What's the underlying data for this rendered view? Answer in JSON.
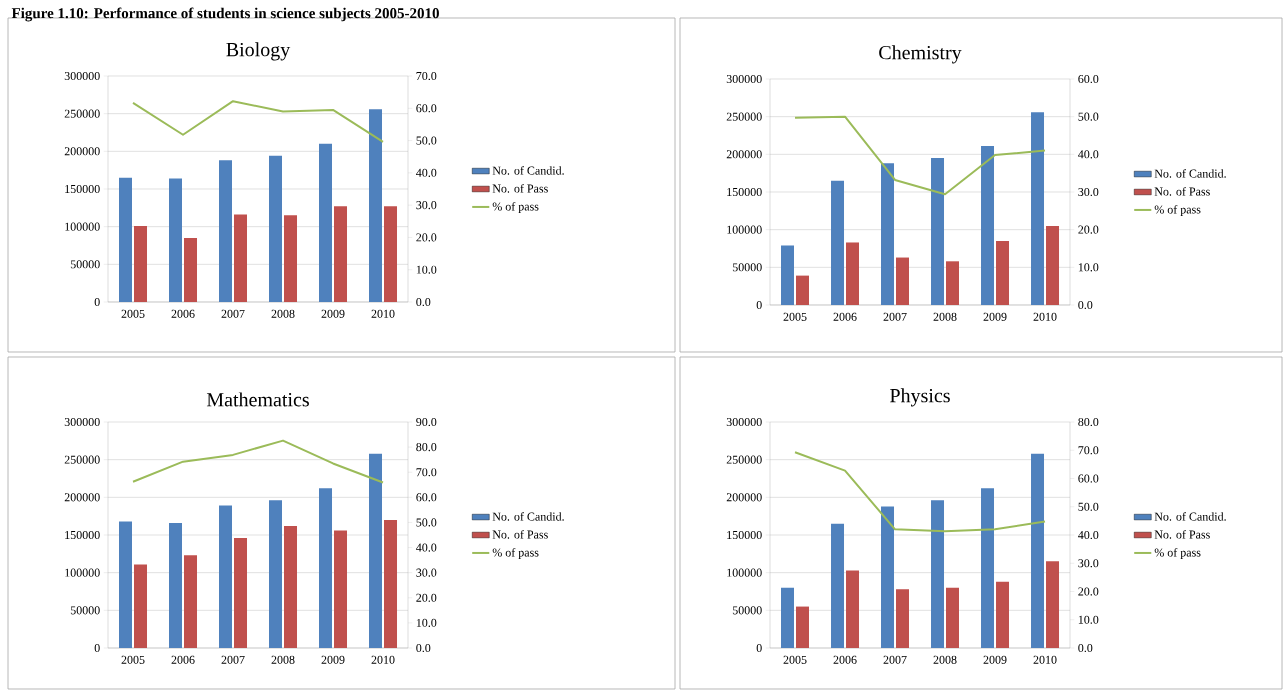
{
  "chart_data": [
    {
      "type": "bar",
      "title": "Biology",
      "annotations": [
        "Figure 1.10: Performance of students in science subjects 2005-2010"
      ],
      "categories": [
        "2005",
        "2006",
        "2007",
        "2008",
        "2009",
        "2010"
      ],
      "series": [
        {
          "name": "No. of Candid.",
          "color": "#4f81bd",
          "values": [
            165000,
            164000,
            188000,
            194000,
            210000,
            256000
          ]
        },
        {
          "name": "No. of Pass",
          "color": "#c0504d",
          "values": [
            101000,
            85000,
            116000,
            115000,
            127000,
            127000
          ]
        },
        {
          "name": "% of pass",
          "type": "line",
          "axis": "y2",
          "color": "#9bbb59",
          "values": [
            61.7,
            51.8,
            62.2,
            59.0,
            59.5,
            49.6
          ]
        }
      ],
      "ylim": [
        0,
        300000
      ],
      "yticks": [
        0,
        50000,
        100000,
        150000,
        200000,
        250000,
        300000
      ],
      "y2lim": [
        0,
        70
      ],
      "y2ticks": [
        {
          "value": 0,
          "label": "0.0"
        },
        {
          "value": 10,
          "label": "10.0"
        },
        {
          "value": 20,
          "label": "20.0"
        },
        {
          "value": 30,
          "label": "30.0"
        },
        {
          "value": 40,
          "label": "40.0"
        },
        {
          "value": 50,
          "label": "50.0"
        },
        {
          "value": 60,
          "label": "60.0"
        },
        {
          "value": 70,
          "label": "70.0"
        }
      ],
      "grid": "y",
      "legend": "right"
    },
    {
      "type": "bar",
      "title": "Chemistry",
      "categories": [
        "2005",
        "2006",
        "2007",
        "2008",
        "2009",
        "2010"
      ],
      "series": [
        {
          "name": "No. of Candid.",
          "color": "#4f81bd",
          "values": [
            79000,
            165000,
            188000,
            195000,
            211000,
            256000
          ]
        },
        {
          "name": "No. of Pass",
          "color": "#c0504d",
          "values": [
            39000,
            83000,
            63000,
            58000,
            85000,
            105000
          ]
        },
        {
          "name": "% of pass",
          "type": "line",
          "axis": "y2",
          "color": "#9bbb59",
          "values": [
            49.7,
            50.0,
            33.2,
            29.4,
            39.8,
            41.0
          ]
        }
      ],
      "ylim": [
        0,
        300000
      ],
      "yticks": [
        0,
        50000,
        100000,
        150000,
        200000,
        250000,
        300000
      ],
      "y2lim": [
        0,
        60
      ],
      "y2ticks": [
        {
          "value": 0,
          "label": "0.0"
        },
        {
          "value": 10,
          "label": "10.0"
        },
        {
          "value": 20,
          "label": "20.0"
        },
        {
          "value": 30,
          "label": "30.0"
        },
        {
          "value": 40,
          "label": "40.0"
        },
        {
          "value": 50,
          "label": "50.0"
        },
        {
          "value": 60,
          "label": "60.0"
        }
      ],
      "grid": "y",
      "legend": "right"
    },
    {
      "type": "bar",
      "title": "Mathematics",
      "categories": [
        "2005",
        "2006",
        "2007",
        "2008",
        "2009",
        "2010"
      ],
      "series": [
        {
          "name": "No. of Candid.",
          "color": "#4f81bd",
          "values": [
            168000,
            166000,
            189000,
            196000,
            212000,
            258000
          ]
        },
        {
          "name": "No. of Pass",
          "color": "#c0504d",
          "values": [
            111000,
            123000,
            146000,
            162000,
            156000,
            170000
          ]
        },
        {
          "name": "% of pass",
          "type": "line",
          "axis": "y2",
          "color": "#9bbb59",
          "values": [
            66.2,
            74.2,
            76.9,
            82.6,
            73.5,
            65.9
          ]
        }
      ],
      "ylim": [
        0,
        300000
      ],
      "yticks": [
        0,
        50000,
        100000,
        150000,
        200000,
        250000,
        300000
      ],
      "y2lim": [
        0,
        90
      ],
      "y2ticks": [
        {
          "value": 0,
          "label": "0.0"
        },
        {
          "value": 10,
          "label": "10.0"
        },
        {
          "value": 20,
          "label": "20.0"
        },
        {
          "value": 30,
          "label": "30.0"
        },
        {
          "value": 40,
          "label": "40.0"
        },
        {
          "value": 50,
          "label": "50.0"
        },
        {
          "value": 60,
          "label": "60.0"
        },
        {
          "value": 70,
          "label": "70.0"
        },
        {
          "value": 80,
          "label": "80.0"
        },
        {
          "value": 90,
          "label": "90.0"
        }
      ],
      "grid": "y",
      "legend": "right"
    },
    {
      "type": "bar",
      "title": "Physics",
      "categories": [
        "2005",
        "2006",
        "2007",
        "2008",
        "2009",
        "2010"
      ],
      "series": [
        {
          "name": "No. of Candid.",
          "color": "#4f81bd",
          "values": [
            80000,
            165000,
            188000,
            196000,
            212000,
            258000
          ]
        },
        {
          "name": "No. of Pass",
          "color": "#c0504d",
          "values": [
            55000,
            103000,
            78000,
            80000,
            88000,
            115000
          ]
        },
        {
          "name": "% of pass",
          "type": "line",
          "axis": "y2",
          "color": "#9bbb59",
          "values": [
            69.3,
            62.8,
            42.0,
            41.3,
            42.0,
            44.8
          ]
        }
      ],
      "ylim": [
        0,
        300000
      ],
      "yticks": [
        0,
        50000,
        100000,
        150000,
        200000,
        250000,
        300000
      ],
      "y2lim": [
        0,
        80
      ],
      "y2ticks": [
        {
          "value": 0,
          "label": "0.0"
        },
        {
          "value": 10,
          "label": "10.0"
        },
        {
          "value": 20,
          "label": "20.0"
        },
        {
          "value": 30,
          "label": "30.0"
        },
        {
          "value": 40,
          "label": "40.0"
        },
        {
          "value": 50,
          "label": "50.0"
        },
        {
          "value": 60,
          "label": "60.0"
        },
        {
          "value": 70,
          "label": "70.0"
        },
        {
          "value": 80,
          "label": "80.0"
        }
      ],
      "grid": "y",
      "legend": "right"
    }
  ]
}
